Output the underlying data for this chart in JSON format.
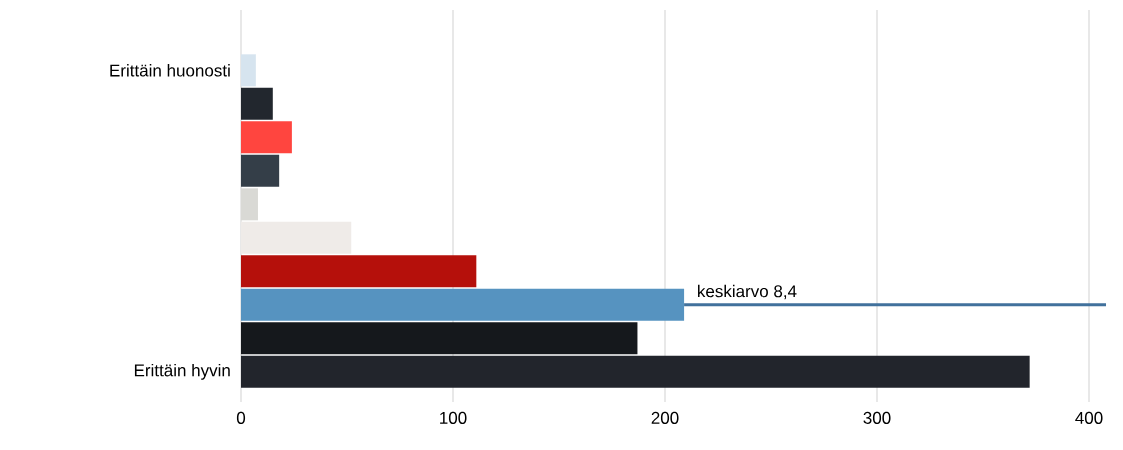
{
  "chart_data": {
    "type": "bar",
    "orientation": "horizontal",
    "categories": [
      "Erittäin huonosti",
      null,
      null,
      null,
      null,
      null,
      null,
      null,
      null,
      "Erittäin hyvin"
    ],
    "values": [
      7,
      15,
      24,
      18,
      8,
      52,
      111,
      209,
      187,
      372
    ],
    "colors": [
      "#d6e4ef",
      "#22272e",
      "#ff453f",
      "#343e48",
      "#d9d9d5",
      "#efebe8",
      "#b5100b",
      "#5693c0",
      "#15181c",
      "#22252c"
    ],
    "xlim": [
      0,
      400
    ],
    "xticks": [
      0,
      100,
      200,
      300,
      400
    ],
    "grid": "x",
    "annotations": [
      "keskiarvo 8,4"
    ]
  }
}
